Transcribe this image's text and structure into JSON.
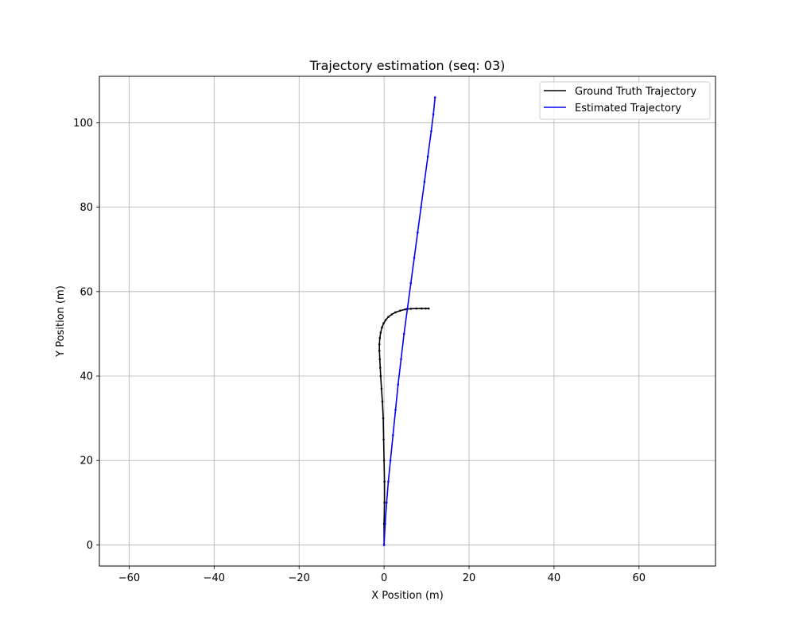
{
  "chart_data": {
    "type": "line",
    "title": "Trajectory estimation (seq: 03)",
    "xlabel": "X Position (m)",
    "ylabel": "Y Position (m)",
    "xlim": [
      -67,
      78
    ],
    "ylim": [
      -5,
      111
    ],
    "xticks": [
      -60,
      -40,
      -20,
      0,
      20,
      40,
      60
    ],
    "yticks": [
      0,
      20,
      40,
      60,
      80,
      100
    ],
    "grid": true,
    "legend": {
      "placement": "upper right"
    },
    "series": [
      {
        "name": "Ground Truth Trajectory",
        "color": "#000000",
        "x": [
          0.0,
          0.0,
          0.1,
          0.1,
          0.0,
          -0.1,
          -0.2,
          -0.4,
          -0.6,
          -0.8,
          -0.9,
          -1.0,
          -1.1,
          -1.1,
          -1.0,
          -0.8,
          -0.5,
          -0.1,
          0.4,
          1.0,
          1.8,
          2.7,
          3.8,
          5.0,
          6.3,
          7.6,
          8.8,
          9.8,
          10.5
        ],
        "y": [
          0,
          5,
          10,
          15,
          20,
          25,
          30,
          34,
          37,
          40,
          42,
          44,
          46,
          47.5,
          49,
          50.3,
          51.5,
          52.5,
          53.3,
          54.0,
          54.6,
          55.1,
          55.5,
          55.8,
          55.95,
          56.0,
          56.0,
          56.0,
          56.0
        ]
      },
      {
        "name": "Estimated Trajectory",
        "color": "#0000ff",
        "x": [
          0.0,
          0.25,
          0.6,
          1.0,
          1.5,
          2.1,
          2.7,
          3.3,
          4.0,
          4.7,
          5.5,
          6.3,
          7.1,
          7.9,
          8.7,
          9.5,
          10.3,
          11.1,
          11.6,
          12.0
        ],
        "y": [
          0,
          5,
          10,
          15,
          20,
          26,
          32,
          38,
          44,
          50,
          56,
          62,
          68,
          74,
          80,
          86,
          92,
          98,
          102,
          106
        ]
      }
    ]
  }
}
